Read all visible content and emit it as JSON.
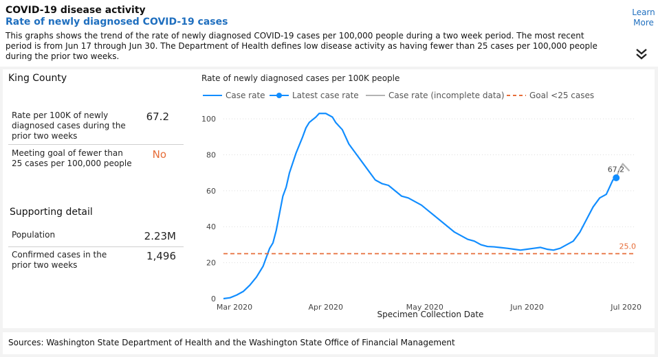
{
  "header": {
    "title": "COVID-19 disease activity",
    "subtitle": "Rate of newly diagnosed COVID-19 cases",
    "description": "This graphs shows the trend of the rate of newly diagnosed COVID-19 cases per 100,000 people during a two week period. The most recent period is from Jun 17 through Jun 30. The Department of Health defines low disease activity as having fewer than 25 cases per 100,000 people during the prior two weeks.",
    "learn_more": "Learn More",
    "expand_icon": "double-chevron-down-icon"
  },
  "left_panel": {
    "county": "King County",
    "rate_label": "Rate per 100K of newly diagnosed cases during the prior two weeks",
    "rate_value": "67.2",
    "goal_label": "Meeting goal of fewer than 25 cases per 100,000 people",
    "goal_value": "No",
    "supporting_title": "Supporting detail",
    "population_label": "Population",
    "population_value": "2.23M",
    "confirmed_label": "Confirmed cases in the prior two weeks",
    "confirmed_value": "1,496"
  },
  "colors": {
    "accent": "#1f6fbf",
    "case_rate": "#118dff",
    "incomplete": "#b3b3b3",
    "goal": "#e66c37",
    "no_value": "#e66c37"
  },
  "footer": {
    "sources": "Sources: Washington State Department of Health and the Washington State Office of Financial Management"
  },
  "chart_data": {
    "type": "line",
    "title": "Rate of newly diagnosed cases per 100K people",
    "xlabel": "Specimen Collection Date",
    "ylabel": "",
    "ylim": [
      0,
      105
    ],
    "yticks": [
      0,
      20,
      40,
      60,
      80,
      100
    ],
    "xlim_days": [
      0,
      125
    ],
    "xticks": [
      {
        "day": 0,
        "label": "Mar 2020"
      },
      {
        "day": 31,
        "label": "Apr 2020"
      },
      {
        "day": 61,
        "label": "May 2020"
      },
      {
        "day": 92,
        "label": "Jun 2020"
      },
      {
        "day": 122,
        "label": "Jul 2020"
      }
    ],
    "legend": [
      {
        "name": "Case rate",
        "style": "line"
      },
      {
        "name": "Latest case rate",
        "style": "line-dot"
      },
      {
        "name": "Case rate (incomplete data)",
        "style": "gray-line"
      },
      {
        "name": "Goal <25 cases",
        "style": "dashed"
      }
    ],
    "series": [
      {
        "name": "Case rate",
        "x_days": [
          0,
          2,
          4,
          6,
          8,
          10,
          12,
          14,
          15,
          16,
          18,
          19,
          20,
          22,
          24,
          25,
          26,
          28,
          29,
          30,
          31,
          32,
          33,
          34,
          36,
          38,
          40,
          42,
          44,
          46,
          48,
          50,
          52,
          54,
          56,
          58,
          60,
          62,
          64,
          66,
          68,
          70,
          72,
          74,
          76,
          78,
          80,
          82,
          84,
          86,
          88,
          90,
          92,
          94,
          96,
          98,
          100,
          102,
          104,
          106,
          108,
          110,
          112,
          114,
          116,
          118,
          119,
          120
        ],
        "values": [
          0,
          0.5,
          2,
          4,
          7.5,
          12,
          18,
          28,
          31,
          38,
          57,
          62,
          70,
          81,
          90,
          95,
          98,
          101,
          103,
          103,
          103,
          102,
          101,
          98,
          94,
          86,
          81,
          76,
          71,
          66,
          64,
          63,
          60,
          57,
          56,
          54,
          52,
          49,
          46,
          43,
          40,
          37,
          35,
          33,
          32,
          30,
          29,
          28.8,
          28.4,
          28,
          27.5,
          27,
          27.5,
          28,
          28.5,
          27.5,
          27,
          28,
          30,
          32,
          37,
          44,
          51,
          56,
          58,
          66,
          67.2,
          67.2
        ]
      },
      {
        "name": "Latest case rate",
        "x_days": [
          119
        ],
        "values": [
          67.2
        ],
        "label": "67.2"
      },
      {
        "name": "Case rate (incomplete data)",
        "x_days": [
          119,
          120,
          121,
          122,
          123
        ],
        "values": [
          67.2,
          72,
          75,
          73,
          71
        ]
      },
      {
        "name": "Goal <25 cases",
        "x_days": [
          0,
          125
        ],
        "values": [
          25,
          25
        ],
        "label": "25.0"
      }
    ]
  }
}
